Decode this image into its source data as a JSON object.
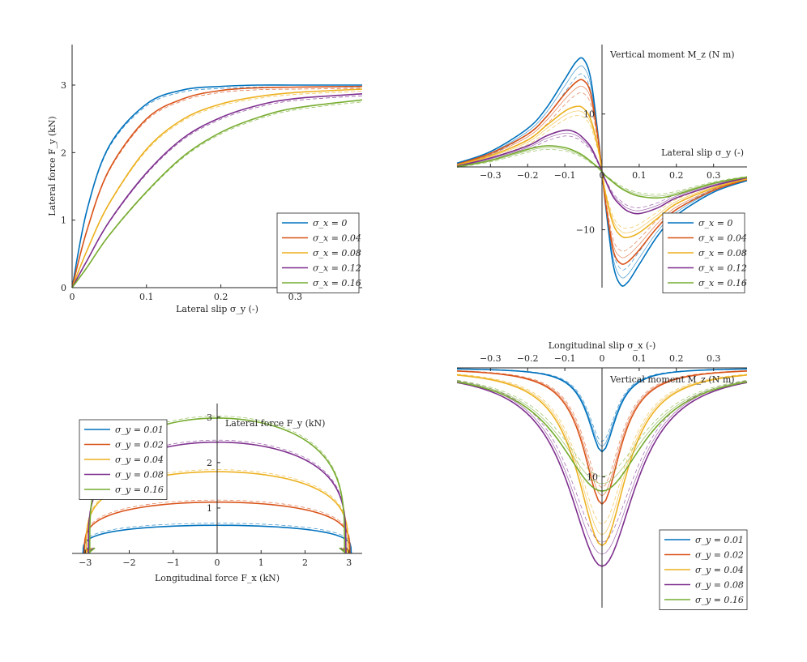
{
  "colors": {
    "blue": "#0072bd",
    "orange": "#d95319",
    "yellow": "#edb120",
    "purple": "#7e2f8e",
    "green": "#77ac30",
    "axis": "#262626"
  },
  "chart_data": [
    {
      "id": "lateral-force",
      "type": "line",
      "xlabel": "Lateral slip σ_y (-)",
      "ylabel": "Lateral force F_y (kN)",
      "xlim": [
        0,
        0.39
      ],
      "ylim": [
        0,
        3.6
      ],
      "xticks": [
        0,
        0.1,
        0.2,
        0.3
      ],
      "xtick_labels": [
        "0",
        "0.1",
        "0.2",
        "0.3"
      ],
      "yticks": [
        0,
        1,
        2,
        3
      ],
      "ytick_labels": [
        "0",
        "1",
        "2",
        "3"
      ],
      "legend": [
        "σ_x = 0",
        "σ_x = 0.04",
        "σ_x = 0.08",
        "σ_x = 0.12",
        "σ_x = 0.16"
      ],
      "legend_position": "bottom-right",
      "series": [
        {
          "name": "σ_x = 0",
          "color": "blue",
          "x": [
            0,
            0.02,
            0.05,
            0.1,
            0.15,
            0.2,
            0.25,
            0.3,
            0.39
          ],
          "y": [
            0,
            1.15,
            2.1,
            2.72,
            2.93,
            2.98,
            3.0,
            3.0,
            3.0
          ]
        },
        {
          "name": "σ_x = 0.04",
          "color": "orange",
          "x": [
            0,
            0.02,
            0.05,
            0.1,
            0.15,
            0.2,
            0.25,
            0.3,
            0.39
          ],
          "y": [
            0,
            0.85,
            1.75,
            2.5,
            2.8,
            2.92,
            2.96,
            2.97,
            2.98
          ]
        },
        {
          "name": "σ_x = 0.08",
          "color": "yellow",
          "x": [
            0,
            0.02,
            0.05,
            0.1,
            0.15,
            0.2,
            0.25,
            0.3,
            0.39
          ],
          "y": [
            0,
            0.55,
            1.25,
            2.05,
            2.5,
            2.72,
            2.83,
            2.89,
            2.94
          ]
        },
        {
          "name": "σ_x = 0.12",
          "color": "purple",
          "x": [
            0,
            0.02,
            0.05,
            0.1,
            0.15,
            0.2,
            0.25,
            0.3,
            0.39
          ],
          "y": [
            0,
            0.4,
            0.98,
            1.7,
            2.22,
            2.52,
            2.7,
            2.8,
            2.87
          ]
        },
        {
          "name": "σ_x = 0.16",
          "color": "green",
          "x": [
            0,
            0.02,
            0.05,
            0.1,
            0.15,
            0.2,
            0.25,
            0.3,
            0.39
          ],
          "y": [
            0,
            0.3,
            0.78,
            1.42,
            1.95,
            2.3,
            2.52,
            2.66,
            2.78
          ]
        }
      ]
    },
    {
      "id": "vertical-moment-lateral",
      "type": "line",
      "xlabel": "Lateral slip σ_y (-)",
      "ylabel": "Vertical moment M_z (N m)",
      "xlim": [
        -0.39,
        0.39
      ],
      "ylim": [
        -20,
        22
      ],
      "xticks": [
        -0.3,
        -0.2,
        -0.1,
        0,
        0.1,
        0.2,
        0.3
      ],
      "xtick_labels": [
        "−0.3",
        "−0.2",
        "−0.1",
        "0",
        "0.1",
        "0.2",
        "0.3"
      ],
      "yticks": [
        -10,
        10
      ],
      "ytick_labels": [
        "−10",
        "10"
      ],
      "legend": [
        "σ_x = 0",
        "σ_x = 0.04",
        "σ_x = 0.08",
        "σ_x = 0.12",
        "σ_x = 0.16"
      ],
      "legend_position": "bottom-right",
      "series": [
        {
          "name": "σ_x = 0",
          "color": "blue",
          "x": [
            -0.39,
            -0.3,
            -0.2,
            -0.15,
            -0.1,
            -0.07,
            -0.05,
            -0.03,
            -0.01,
            0,
            0.01,
            0.03,
            0.05,
            0.07,
            0.1,
            0.15,
            0.2,
            0.3,
            0.39
          ],
          "y": [
            1.5,
            3.5,
            7.5,
            11,
            16,
            19,
            19.5,
            16,
            6,
            0,
            -6,
            -16,
            -19.5,
            -19,
            -16,
            -11,
            -7.5,
            -3.5,
            -1.5
          ]
        },
        {
          "name": "σ_x = 0.04",
          "color": "orange",
          "x": [
            -0.39,
            -0.3,
            -0.2,
            -0.15,
            -0.1,
            -0.07,
            -0.05,
            -0.03,
            -0.01,
            0,
            0.01,
            0.03,
            0.05,
            0.07,
            0.1,
            0.15,
            0.2,
            0.3,
            0.39
          ],
          "y": [
            1.3,
            3.2,
            6.5,
            9.5,
            13.5,
            15.5,
            15.8,
            13.5,
            5.5,
            0,
            -5.5,
            -13.5,
            -15.8,
            -15.5,
            -13.5,
            -9.5,
            -6.5,
            -3.2,
            -1.3
          ]
        },
        {
          "name": "σ_x = 0.08",
          "color": "yellow",
          "x": [
            -0.39,
            -0.3,
            -0.2,
            -0.15,
            -0.1,
            -0.07,
            -0.05,
            -0.03,
            -0.01,
            0,
            0.01,
            0.03,
            0.05,
            0.07,
            0.1,
            0.15,
            0.2,
            0.3,
            0.39
          ],
          "y": [
            1.2,
            2.8,
            5.5,
            8.0,
            10.5,
            11.3,
            11.0,
            9.0,
            4.0,
            0,
            -4.0,
            -9.0,
            -11.0,
            -11.3,
            -10.5,
            -8.0,
            -5.5,
            -2.8,
            -1.2
          ]
        },
        {
          "name": "σ_x = 0.12",
          "color": "purple",
          "x": [
            -0.39,
            -0.3,
            -0.2,
            -0.15,
            -0.1,
            -0.07,
            -0.05,
            -0.03,
            -0.01,
            0,
            0.01,
            0.03,
            0.05,
            0.07,
            0.1,
            0.15,
            0.2,
            0.3,
            0.39
          ],
          "y": [
            1.0,
            2.4,
            4.5,
            6.2,
            7.2,
            6.8,
            5.8,
            4.3,
            1.6,
            0,
            -1.6,
            -4.3,
            -5.8,
            -6.8,
            -7.2,
            -6.2,
            -4.5,
            -2.4,
            -1.0
          ]
        },
        {
          "name": "σ_x = 0.16",
          "color": "green",
          "x": [
            -0.39,
            -0.3,
            -0.2,
            -0.15,
            -0.1,
            -0.07,
            -0.05,
            -0.03,
            -0.01,
            0,
            0.01,
            0.03,
            0.05,
            0.07,
            0.1,
            0.15,
            0.2,
            0.3,
            0.39
          ],
          "y": [
            0.9,
            2.0,
            3.9,
            4.5,
            4.2,
            3.5,
            2.8,
            1.8,
            0.7,
            0,
            -0.7,
            -1.8,
            -2.8,
            -3.5,
            -4.2,
            -4.5,
            -3.9,
            -2.0,
            -0.9
          ]
        }
      ]
    },
    {
      "id": "force-envelope",
      "type": "line",
      "xlabel": "Longitudinal force F_x (kN)",
      "ylabel": "Lateral force F_y (kN)",
      "xlim": [
        -3.3,
        3.3
      ],
      "ylim": [
        0,
        3.3
      ],
      "xticks": [
        -3,
        -2,
        -1,
        0,
        1,
        2,
        3
      ],
      "xtick_labels": [
        "−3",
        "−2",
        "−1",
        "0",
        "1",
        "2",
        "3"
      ],
      "yticks": [
        1,
        2,
        3
      ],
      "ytick_labels": [
        "1",
        "2",
        "3"
      ],
      "legend": [
        "σ_y = 0.01",
        "σ_y = 0.02",
        "σ_y = 0.04",
        "σ_y = 0.08",
        "σ_y = 0.16"
      ],
      "legend_position": "top-left",
      "series": [
        {
          "name": "σ_y = 0.01",
          "color": "blue",
          "peak_fy": 0.62,
          "fx_max": 3.05
        },
        {
          "name": "σ_y = 0.02",
          "color": "orange",
          "peak_fy": 1.13,
          "fx_max": 3.02
        },
        {
          "name": "σ_y = 0.04",
          "color": "yellow",
          "peak_fy": 1.8,
          "fx_max": 2.98
        },
        {
          "name": "σ_y = 0.08",
          "color": "purple",
          "peak_fy": 2.45,
          "fx_max": 2.93
        },
        {
          "name": "σ_y = 0.16",
          "color": "green",
          "peak_fy": 2.98,
          "fx_max": 2.9
        }
      ]
    },
    {
      "id": "vertical-moment-longitudinal",
      "type": "line",
      "xlabel": "Longitudinal slip σ_x (-)",
      "ylabel": "Vertical moment M_z (N m)",
      "xlim": [
        -0.39,
        0.39
      ],
      "ylim": [
        0,
        22
      ],
      "xticks": [
        -0.3,
        -0.2,
        -0.1,
        0,
        0.1,
        0.2,
        0.3
      ],
      "xtick_labels": [
        "−0.3",
        "−0.2",
        "−0.1",
        "0",
        "0.1",
        "0.2",
        "0.3"
      ],
      "yticks": [
        10
      ],
      "ytick_labels": [
        "10"
      ],
      "legend": [
        "σ_y = 0.01",
        "σ_y = 0.02",
        "σ_y = 0.04",
        "σ_y = 0.08",
        "σ_y = 0.16"
      ],
      "legend_position": "bottom-right",
      "series": [
        {
          "name": "σ_y = 0.01",
          "color": "blue",
          "depth": 7.7,
          "width": 0.045
        },
        {
          "name": "σ_y = 0.02",
          "color": "orange",
          "depth": 12.5,
          "width": 0.06
        },
        {
          "name": "σ_y = 0.04",
          "color": "yellow",
          "depth": 16.3,
          "width": 0.08
        },
        {
          "name": "σ_y = 0.08",
          "color": "purple",
          "depth": 18.2,
          "width": 0.11
        },
        {
          "name": "σ_y = 0.16",
          "color": "green",
          "depth": 11.3,
          "width": 0.14
        }
      ]
    }
  ]
}
